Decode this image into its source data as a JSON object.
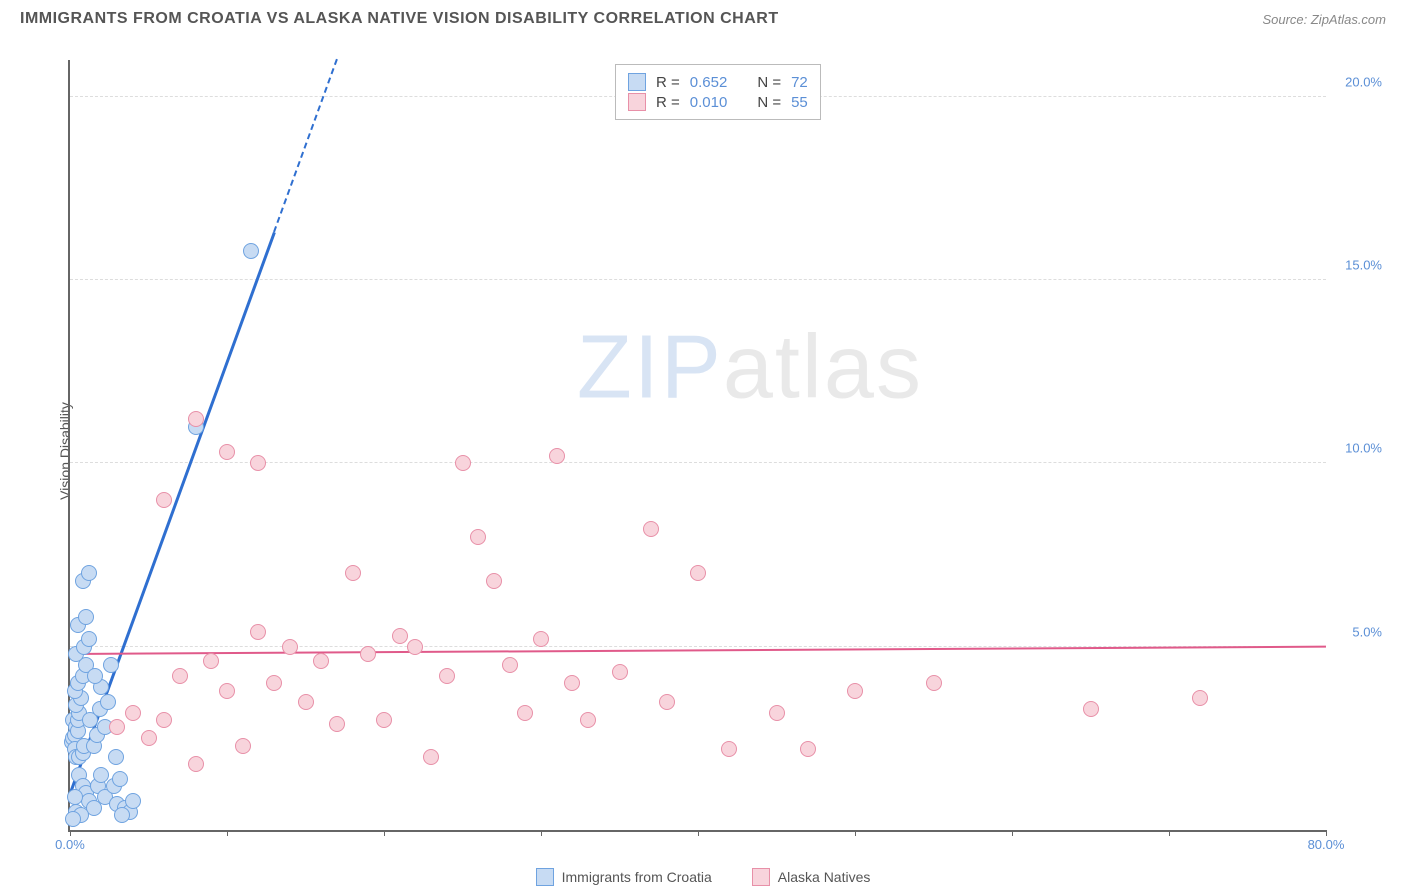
{
  "header": {
    "title": "IMMIGRANTS FROM CROATIA VS ALASKA NATIVE VISION DISABILITY CORRELATION CHART",
    "source_prefix": "Source: ",
    "source": "ZipAtlas.com"
  },
  "watermark": {
    "zip": "ZIP",
    "atlas": "atlas"
  },
  "chart": {
    "type": "scatter",
    "ylabel": "Vision Disability",
    "xlim": [
      0,
      80
    ],
    "ylim": [
      0,
      21
    ],
    "x_ticks": [
      0,
      10,
      20,
      30,
      40,
      50,
      60,
      70,
      80
    ],
    "x_tick_labels_visible": {
      "0": "0.0%",
      "80": "80.0%"
    },
    "y_ticks": [
      5,
      10,
      15,
      20
    ],
    "y_tick_labels": {
      "5": "5.0%",
      "10": "10.0%",
      "15": "15.0%",
      "20": "20.0%"
    },
    "background_color": "#ffffff",
    "grid_color": "#dddddd",
    "axis_color": "#666666",
    "tick_label_color": "#5b8fd6",
    "marker_radius": 8,
    "marker_stroke": 1.5,
    "series": [
      {
        "key": "croatia",
        "label": "Immigrants from Croatia",
        "fill": "#c7dbf3",
        "stroke": "#6fa3e0",
        "R": "0.652",
        "N": "72",
        "regression": {
          "x1": 0,
          "y1": 1.0,
          "x2": 17,
          "y2": 21,
          "dash_after_x": 13,
          "color": "#2f6fd0",
          "width": 2.5
        },
        "points": [
          [
            0.1,
            2.4
          ],
          [
            0.2,
            2.5
          ],
          [
            0.3,
            2.6
          ],
          [
            0.2,
            3.0
          ],
          [
            0.4,
            2.8
          ],
          [
            0.5,
            2.7
          ],
          [
            0.3,
            2.2
          ],
          [
            0.4,
            2.0
          ],
          [
            0.6,
            2.0
          ],
          [
            0.8,
            2.1
          ],
          [
            0.9,
            2.3
          ],
          [
            0.5,
            3.0
          ],
          [
            0.6,
            3.2
          ],
          [
            0.4,
            3.4
          ],
          [
            0.7,
            3.6
          ],
          [
            0.3,
            3.8
          ],
          [
            0.5,
            4.0
          ],
          [
            0.8,
            4.2
          ],
          [
            1.0,
            4.5
          ],
          [
            0.4,
            4.8
          ],
          [
            0.9,
            5.0
          ],
          [
            1.2,
            5.2
          ],
          [
            0.5,
            5.6
          ],
          [
            1.0,
            5.8
          ],
          [
            0.6,
            1.5
          ],
          [
            0.8,
            1.2
          ],
          [
            1.0,
            1.0
          ],
          [
            1.2,
            0.8
          ],
          [
            1.5,
            0.6
          ],
          [
            0.3,
            0.9
          ],
          [
            0.4,
            0.5
          ],
          [
            0.7,
            0.4
          ],
          [
            0.2,
            0.3
          ],
          [
            1.8,
            1.2
          ],
          [
            2.0,
            1.5
          ],
          [
            1.5,
            2.3
          ],
          [
            1.7,
            2.6
          ],
          [
            2.2,
            2.8
          ],
          [
            1.3,
            3.0
          ],
          [
            1.9,
            3.3
          ],
          [
            2.4,
            3.5
          ],
          [
            2.0,
            3.9
          ],
          [
            1.6,
            4.2
          ],
          [
            2.6,
            4.5
          ],
          [
            2.2,
            0.9
          ],
          [
            2.8,
            1.2
          ],
          [
            3.2,
            1.4
          ],
          [
            2.9,
            2.0
          ],
          [
            3.0,
            0.7
          ],
          [
            3.5,
            0.6
          ],
          [
            3.8,
            0.5
          ],
          [
            4.0,
            0.8
          ],
          [
            3.3,
            0.4
          ],
          [
            0.8,
            6.8
          ],
          [
            1.2,
            7.0
          ],
          [
            11.5,
            15.8
          ],
          [
            8.0,
            11.0
          ]
        ]
      },
      {
        "key": "alaska",
        "label": "Alaska Natives",
        "fill": "#f8d4dc",
        "stroke": "#e890a8",
        "R": "0.010",
        "N": "55",
        "regression": {
          "x1": 0,
          "y1": 4.8,
          "x2": 80,
          "y2": 5.0,
          "color": "#e05a8a",
          "width": 2
        },
        "points": [
          [
            3,
            2.8
          ],
          [
            4,
            3.2
          ],
          [
            5,
            2.5
          ],
          [
            6,
            3.0
          ],
          [
            7,
            4.2
          ],
          [
            8,
            1.8
          ],
          [
            9,
            4.6
          ],
          [
            10,
            3.8
          ],
          [
            11,
            2.3
          ],
          [
            12,
            5.4
          ],
          [
            6,
            9.0
          ],
          [
            13,
            4.0
          ],
          [
            14,
            5.0
          ],
          [
            15,
            3.5
          ],
          [
            16,
            4.6
          ],
          [
            17,
            2.9
          ],
          [
            18,
            7.0
          ],
          [
            19,
            4.8
          ],
          [
            20,
            3.0
          ],
          [
            21,
            5.3
          ],
          [
            22,
            5.0
          ],
          [
            23,
            2.0
          ],
          [
            10,
            10.3
          ],
          [
            12,
            10.0
          ],
          [
            8,
            11.2
          ],
          [
            24,
            4.2
          ],
          [
            25,
            10.0
          ],
          [
            26,
            8.0
          ],
          [
            27,
            6.8
          ],
          [
            28,
            4.5
          ],
          [
            29,
            3.2
          ],
          [
            30,
            5.2
          ],
          [
            31,
            10.2
          ],
          [
            32,
            4.0
          ],
          [
            33,
            3.0
          ],
          [
            35,
            4.3
          ],
          [
            37,
            8.2
          ],
          [
            38,
            3.5
          ],
          [
            40,
            7.0
          ],
          [
            42,
            2.2
          ],
          [
            45,
            3.2
          ],
          [
            47,
            2.2
          ],
          [
            50,
            3.8
          ],
          [
            55,
            4.0
          ],
          [
            65,
            3.3
          ],
          [
            72,
            3.6
          ]
        ]
      }
    ]
  },
  "legend": {
    "items": [
      {
        "label": "Immigrants from Croatia",
        "fill": "#c7dbf3",
        "stroke": "#6fa3e0"
      },
      {
        "label": "Alaska Natives",
        "fill": "#f8d4dc",
        "stroke": "#e890a8"
      }
    ]
  },
  "stats_labels": {
    "R": "R =",
    "N": "N ="
  }
}
